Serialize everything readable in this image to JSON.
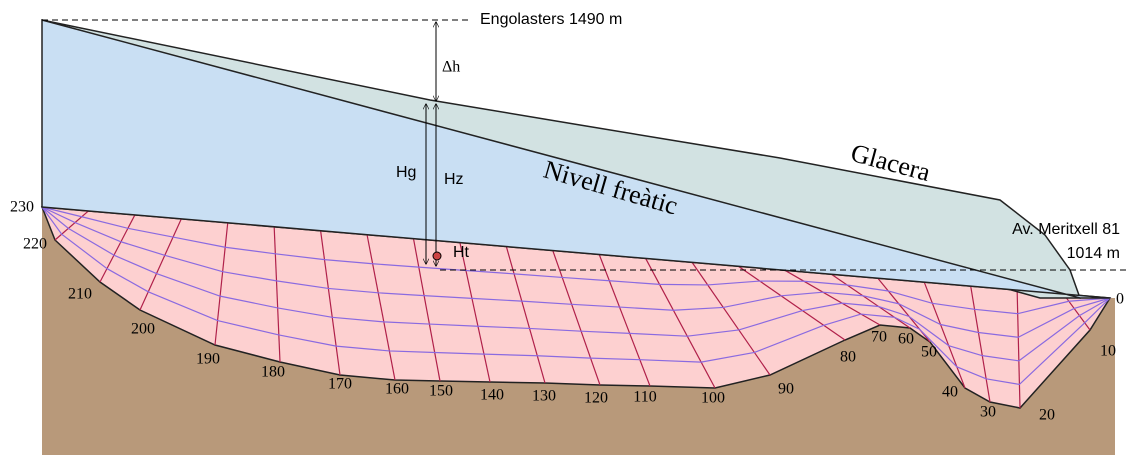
{
  "labels": {
    "top_site": "Engolasters 1490 m",
    "delta_h": "Δh",
    "hg": "Hg",
    "hz": "Hz",
    "ht": "Ht",
    "water_table": "Nivell freàtic",
    "glacier": "Glacera",
    "bottom_site": "Av. Meritxell 81",
    "bottom_altitude": "1014 m"
  },
  "boundary_labels": [
    230,
    220,
    210,
    200,
    190,
    180,
    170,
    160,
    150,
    140,
    130,
    120,
    110,
    100,
    90,
    80,
    70,
    60,
    50,
    40,
    30,
    20,
    10,
    0
  ]
}
